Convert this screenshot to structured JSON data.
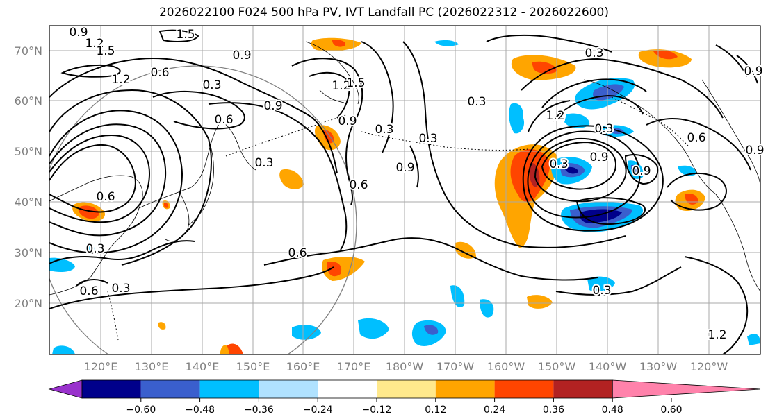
{
  "title": "2026022100 F024 500 hPa PV, IVT Landfall PC (2026022312 - 2026022600)",
  "map": {
    "lat_labels": [
      "70°N",
      "60°N",
      "50°N",
      "40°N",
      "30°N",
      "20°N"
    ],
    "lon_labels": [
      "120°E",
      "130°E",
      "140°E",
      "150°E",
      "160°E",
      "170°E",
      "180°W",
      "170°W",
      "160°W",
      "150°W",
      "140°W",
      "130°W",
      "120°W"
    ],
    "pv_contour_labels": [
      "0.9",
      "1.2",
      "1.5",
      "1.5",
      "0.9",
      "1.2",
      "0.6",
      "0.3",
      "0.9",
      "1.2",
      "1.5",
      "0.6",
      "0.3",
      "0.3",
      "0.9",
      "0.9",
      "0.3",
      "0.6",
      "1.2",
      "0.9",
      "0.3",
      "0.3",
      "0.9",
      "0.3",
      "0.9",
      "0.6",
      "0.3",
      "0.6",
      "0.3",
      "0.6",
      "0.3",
      "1.2",
      "0.6",
      "0.9",
      "0.3"
    ],
    "label_color": "#808080"
  },
  "colorbar": {
    "ticks": [
      "−0.60",
      "−0.48",
      "−0.36",
      "−0.24",
      "−0.12",
      "0.12",
      "0.24",
      "0.36",
      "0.48",
      "0.60"
    ],
    "colors": [
      "#9932CC",
      "#00008B",
      "#3A5FCD",
      "#00BFFF",
      "#B0E2FF",
      "#FFFFFF",
      "#FFE98C",
      "#FFA500",
      "#FF4500",
      "#B22222",
      "#FF82AB"
    ]
  }
}
